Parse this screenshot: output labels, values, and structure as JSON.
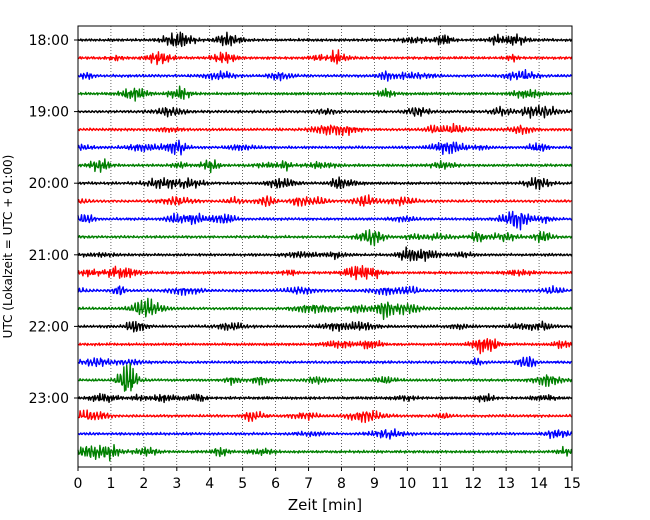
{
  "chart_data": {
    "type": "line",
    "title": "",
    "xlabel": "Zeit  [min]",
    "ylabel": "UTC (Lokalzeit = UTC + 01:00)",
    "xlim": [
      0,
      15
    ],
    "x_ticks": [
      "0",
      "1",
      "2",
      "3",
      "4",
      "5",
      "6",
      "7",
      "8",
      "9",
      "10",
      "11",
      "12",
      "13",
      "14",
      "15"
    ],
    "y_tick_labels": [
      "18:00",
      "19:00",
      "20:00",
      "21:00",
      "22:00",
      "23:00"
    ],
    "grid": "vertical dotted lines at each minute",
    "trace_interval_minutes": 15,
    "trace_count": 24,
    "trace_start_times": [
      "18:00",
      "18:15",
      "18:30",
      "18:45",
      "19:00",
      "19:15",
      "19:30",
      "19:45",
      "20:00",
      "20:15",
      "20:30",
      "20:45",
      "21:00",
      "21:15",
      "21:30",
      "21:45",
      "22:00",
      "22:15",
      "22:30",
      "22:45",
      "23:00",
      "23:15",
      "23:30",
      "23:45"
    ],
    "color_cycle": [
      "#000000",
      "#ff0000",
      "#0000ff",
      "#008000"
    ]
  }
}
